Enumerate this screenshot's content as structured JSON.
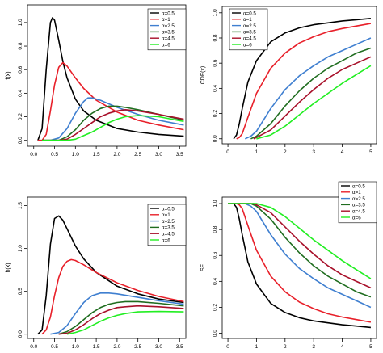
{
  "chart_data": [
    {
      "type": "line",
      "title": "",
      "xlabel": "",
      "ylabel": "f(x)",
      "xlim": [
        -0.15,
        3.65
      ],
      "ylim": [
        -0.05,
        1.15
      ],
      "xticks": [
        "0.0",
        "0.5",
        "1.0",
        "1.5",
        "2.0",
        "2.5",
        "3.0",
        "3.5"
      ],
      "yticks": [
        "0.0",
        "0.2",
        "0.4",
        "0.6",
        "0.8",
        "1.0"
      ],
      "legend_position": "top-right",
      "series": [
        {
          "name": "α=0.5",
          "color": "#000000",
          "x": [
            0.1,
            0.2,
            0.3,
            0.4,
            0.45,
            0.5,
            0.6,
            0.7,
            0.8,
            1.0,
            1.2,
            1.5,
            2.0,
            2.5,
            3.0,
            3.6
          ],
          "values": [
            0.0,
            0.1,
            0.6,
            1.0,
            1.04,
            1.02,
            0.85,
            0.67,
            0.53,
            0.35,
            0.25,
            0.17,
            0.1,
            0.07,
            0.05,
            0.035
          ]
        },
        {
          "name": "α=1",
          "color": "#e8202a",
          "x": [
            0.1,
            0.2,
            0.3,
            0.4,
            0.5,
            0.6,
            0.7,
            0.8,
            1.0,
            1.2,
            1.5,
            2.0,
            2.5,
            3.0,
            3.6
          ],
          "values": [
            0.0,
            0.0,
            0.05,
            0.25,
            0.47,
            0.62,
            0.66,
            0.63,
            0.53,
            0.44,
            0.34,
            0.24,
            0.17,
            0.13,
            0.09
          ]
        },
        {
          "name": "α=2.5",
          "color": "#3f7fd0",
          "x": [
            0.2,
            0.4,
            0.6,
            0.8,
            1.0,
            1.2,
            1.3,
            1.4,
            1.6,
            1.8,
            2.0,
            2.5,
            3.0,
            3.6
          ],
          "values": [
            0.0,
            0.0,
            0.02,
            0.1,
            0.23,
            0.33,
            0.36,
            0.36,
            0.34,
            0.31,
            0.28,
            0.22,
            0.17,
            0.13
          ]
        },
        {
          "name": "α=3.5",
          "color": "#1f6d1f",
          "x": [
            0.2,
            0.4,
            0.6,
            0.8,
            1.0,
            1.2,
            1.4,
            1.6,
            1.8,
            2.0,
            2.2,
            2.5,
            3.0,
            3.6
          ],
          "values": [
            0.0,
            0.0,
            0.0,
            0.03,
            0.09,
            0.17,
            0.23,
            0.27,
            0.29,
            0.29,
            0.28,
            0.26,
            0.22,
            0.17
          ]
        },
        {
          "name": "α=4.5",
          "color": "#a8102a",
          "x": [
            0.2,
            0.4,
            0.6,
            0.8,
            1.0,
            1.2,
            1.4,
            1.6,
            1.8,
            2.0,
            2.2,
            2.5,
            3.0,
            3.6
          ],
          "values": [
            0.0,
            0.0,
            0.0,
            0.01,
            0.05,
            0.1,
            0.15,
            0.2,
            0.23,
            0.25,
            0.26,
            0.25,
            0.22,
            0.18
          ]
        },
        {
          "name": "α=6",
          "color": "#22ee22",
          "x": [
            0.2,
            0.4,
            0.6,
            0.8,
            1.0,
            1.2,
            1.4,
            1.6,
            1.8,
            2.0,
            2.2,
            2.5,
            3.0,
            3.6
          ],
          "values": [
            0.0,
            0.0,
            0.0,
            0.0,
            0.01,
            0.04,
            0.07,
            0.11,
            0.15,
            0.18,
            0.2,
            0.21,
            0.2,
            0.16
          ]
        }
      ]
    },
    {
      "type": "line",
      "title": "",
      "xlabel": "",
      "ylabel": "CDF(x)",
      "xlim": [
        -0.2,
        5.2
      ],
      "ylim": [
        -0.04,
        1.05
      ],
      "xticks": [
        "0",
        "1",
        "2",
        "3",
        "4",
        "5"
      ],
      "yticks": [
        "0.0",
        "0.2",
        "0.4",
        "0.6",
        "0.8",
        "1.0"
      ],
      "legend_position": "top-left",
      "series": [
        {
          "name": "α=0.5",
          "color": "#000000",
          "x": [
            0.2,
            0.3,
            0.4,
            0.5,
            0.7,
            1.0,
            1.5,
            2.0,
            2.5,
            3.0,
            3.5,
            4.0,
            4.5,
            5.0
          ],
          "values": [
            0.0,
            0.03,
            0.12,
            0.24,
            0.45,
            0.62,
            0.77,
            0.84,
            0.88,
            0.905,
            0.92,
            0.935,
            0.945,
            0.955
          ]
        },
        {
          "name": "α=1",
          "color": "#e8202a",
          "x": [
            0.3,
            0.4,
            0.5,
            0.7,
            1.0,
            1.5,
            2.0,
            2.5,
            3.0,
            3.5,
            4.0,
            4.5,
            5.0
          ],
          "values": [
            0.0,
            0.01,
            0.04,
            0.17,
            0.36,
            0.56,
            0.68,
            0.76,
            0.81,
            0.85,
            0.875,
            0.895,
            0.915
          ]
        },
        {
          "name": "α=2.5",
          "color": "#3f7fd0",
          "x": [
            0.6,
            0.8,
            1.0,
            1.5,
            2.0,
            2.5,
            3.0,
            3.5,
            4.0,
            4.5,
            5.0
          ],
          "values": [
            0.0,
            0.02,
            0.06,
            0.24,
            0.39,
            0.5,
            0.58,
            0.65,
            0.7,
            0.75,
            0.8
          ]
        },
        {
          "name": "α=3.5",
          "color": "#1f6d1f",
          "x": [
            0.8,
            1.0,
            1.5,
            2.0,
            2.5,
            3.0,
            3.5,
            4.0,
            4.5,
            5.0
          ],
          "values": [
            0.0,
            0.02,
            0.12,
            0.26,
            0.38,
            0.48,
            0.56,
            0.62,
            0.68,
            0.72
          ]
        },
        {
          "name": "α=4.5",
          "color": "#a8102a",
          "x": [
            0.9,
            1.0,
            1.5,
            2.0,
            2.5,
            3.0,
            3.5,
            4.0,
            4.5,
            5.0
          ],
          "values": [
            0.0,
            0.01,
            0.07,
            0.18,
            0.29,
            0.39,
            0.48,
            0.55,
            0.6,
            0.65
          ]
        },
        {
          "name": "α=6",
          "color": "#22ee22",
          "x": [
            1.0,
            1.5,
            2.0,
            2.5,
            3.0,
            3.5,
            4.0,
            4.5,
            5.0
          ],
          "values": [
            0.0,
            0.03,
            0.1,
            0.19,
            0.28,
            0.36,
            0.44,
            0.51,
            0.58
          ]
        }
      ]
    },
    {
      "type": "line",
      "title": "",
      "xlabel": "",
      "ylabel": "h(x)",
      "xlim": [
        -0.15,
        3.65
      ],
      "ylim": [
        -0.05,
        1.6
      ],
      "xticks": [
        "0.0",
        "0.5",
        "1.0",
        "1.5",
        "2.0",
        "2.5",
        "3.0",
        "3.5"
      ],
      "yticks": [
        "0.0",
        "0.5",
        "1.0",
        "1.5"
      ],
      "legend_position": "top-right",
      "series": [
        {
          "name": "α=0.5",
          "color": "#000000",
          "x": [
            0.1,
            0.2,
            0.3,
            0.4,
            0.5,
            0.6,
            0.7,
            0.8,
            1.0,
            1.2,
            1.5,
            2.0,
            2.5,
            3.0,
            3.6
          ],
          "values": [
            0.0,
            0.05,
            0.45,
            1.05,
            1.35,
            1.38,
            1.33,
            1.23,
            1.03,
            0.88,
            0.72,
            0.56,
            0.47,
            0.41,
            0.37
          ]
        },
        {
          "name": "α=1",
          "color": "#e8202a",
          "x": [
            0.2,
            0.3,
            0.4,
            0.5,
            0.6,
            0.7,
            0.8,
            0.9,
            1.0,
            1.2,
            1.5,
            2.0,
            2.5,
            3.0,
            3.6
          ],
          "values": [
            0.0,
            0.05,
            0.2,
            0.45,
            0.66,
            0.79,
            0.85,
            0.87,
            0.86,
            0.81,
            0.72,
            0.6,
            0.51,
            0.44,
            0.38
          ]
        },
        {
          "name": "α=2.5",
          "color": "#3f7fd0",
          "x": [
            0.4,
            0.6,
            0.8,
            1.0,
            1.2,
            1.4,
            1.6,
            1.8,
            2.0,
            2.5,
            3.0,
            3.6
          ],
          "values": [
            0.0,
            0.02,
            0.1,
            0.24,
            0.37,
            0.45,
            0.48,
            0.48,
            0.47,
            0.43,
            0.39,
            0.35
          ]
        },
        {
          "name": "α=3.5",
          "color": "#1f6d1f",
          "x": [
            0.6,
            0.8,
            1.0,
            1.2,
            1.4,
            1.6,
            1.8,
            2.0,
            2.2,
            2.5,
            3.0,
            3.6
          ],
          "values": [
            0.0,
            0.03,
            0.09,
            0.17,
            0.25,
            0.31,
            0.35,
            0.37,
            0.38,
            0.38,
            0.36,
            0.33
          ]
        },
        {
          "name": "α=4.5",
          "color": "#a8102a",
          "x": [
            0.6,
            0.8,
            1.0,
            1.2,
            1.4,
            1.6,
            1.8,
            2.0,
            2.2,
            2.5,
            3.0,
            3.6
          ],
          "values": [
            0.0,
            0.01,
            0.05,
            0.11,
            0.18,
            0.24,
            0.28,
            0.31,
            0.32,
            0.33,
            0.32,
            0.3
          ]
        },
        {
          "name": "α=6",
          "color": "#22ee22",
          "x": [
            0.8,
            1.0,
            1.2,
            1.4,
            1.6,
            1.8,
            2.0,
            2.2,
            2.5,
            3.0,
            3.6
          ],
          "values": [
            0.0,
            0.02,
            0.05,
            0.1,
            0.15,
            0.19,
            0.22,
            0.24,
            0.26,
            0.265,
            0.26
          ]
        }
      ]
    },
    {
      "type": "line",
      "title": "",
      "xlabel": "",
      "ylabel": "SF",
      "xlim": [
        -0.2,
        5.2
      ],
      "ylim": [
        -0.04,
        1.05
      ],
      "xticks": [
        "0",
        "1",
        "2",
        "3",
        "4",
        "5"
      ],
      "yticks": [
        "0.0",
        "0.2",
        "0.4",
        "0.6",
        "0.8",
        "1.0"
      ],
      "legend_position": "top-right",
      "series": [
        {
          "name": "α=0.5",
          "color": "#000000",
          "x": [
            0.0,
            0.2,
            0.3,
            0.4,
            0.5,
            0.7,
            1.0,
            1.5,
            2.0,
            2.5,
            3.0,
            3.5,
            4.0,
            4.5,
            5.0
          ],
          "values": [
            1.0,
            1.0,
            0.97,
            0.88,
            0.76,
            0.55,
            0.38,
            0.23,
            0.16,
            0.12,
            0.095,
            0.08,
            0.065,
            0.055,
            0.045
          ]
        },
        {
          "name": "α=1",
          "color": "#e8202a",
          "x": [
            0.0,
            0.3,
            0.4,
            0.5,
            0.7,
            1.0,
            1.5,
            2.0,
            2.5,
            3.0,
            3.5,
            4.0,
            4.5,
            5.0
          ],
          "values": [
            1.0,
            1.0,
            0.99,
            0.96,
            0.83,
            0.64,
            0.44,
            0.32,
            0.24,
            0.19,
            0.15,
            0.125,
            0.105,
            0.085
          ]
        },
        {
          "name": "α=2.5",
          "color": "#3f7fd0",
          "x": [
            0.0,
            0.6,
            0.8,
            1.0,
            1.5,
            2.0,
            2.5,
            3.0,
            3.5,
            4.0,
            4.5,
            5.0
          ],
          "values": [
            1.0,
            1.0,
            0.98,
            0.94,
            0.76,
            0.61,
            0.5,
            0.42,
            0.35,
            0.3,
            0.25,
            0.2
          ]
        },
        {
          "name": "α=3.5",
          "color": "#1f6d1f",
          "x": [
            0.0,
            0.8,
            1.0,
            1.5,
            2.0,
            2.5,
            3.0,
            3.5,
            4.0,
            4.5,
            5.0
          ],
          "values": [
            1.0,
            1.0,
            0.98,
            0.88,
            0.74,
            0.62,
            0.52,
            0.44,
            0.38,
            0.32,
            0.28
          ]
        },
        {
          "name": "α=4.5",
          "color": "#a8102a",
          "x": [
            0.0,
            0.9,
            1.0,
            1.5,
            2.0,
            2.5,
            3.0,
            3.5,
            4.0,
            4.5,
            5.0
          ],
          "values": [
            1.0,
            1.0,
            0.99,
            0.93,
            0.82,
            0.71,
            0.61,
            0.52,
            0.45,
            0.4,
            0.35
          ]
        },
        {
          "name": "α=6",
          "color": "#22ee22",
          "x": [
            0.0,
            1.0,
            1.5,
            2.0,
            2.5,
            3.0,
            3.5,
            4.0,
            4.5,
            5.0
          ],
          "values": [
            1.0,
            1.0,
            0.97,
            0.9,
            0.81,
            0.72,
            0.64,
            0.56,
            0.49,
            0.42
          ]
        }
      ]
    }
  ]
}
